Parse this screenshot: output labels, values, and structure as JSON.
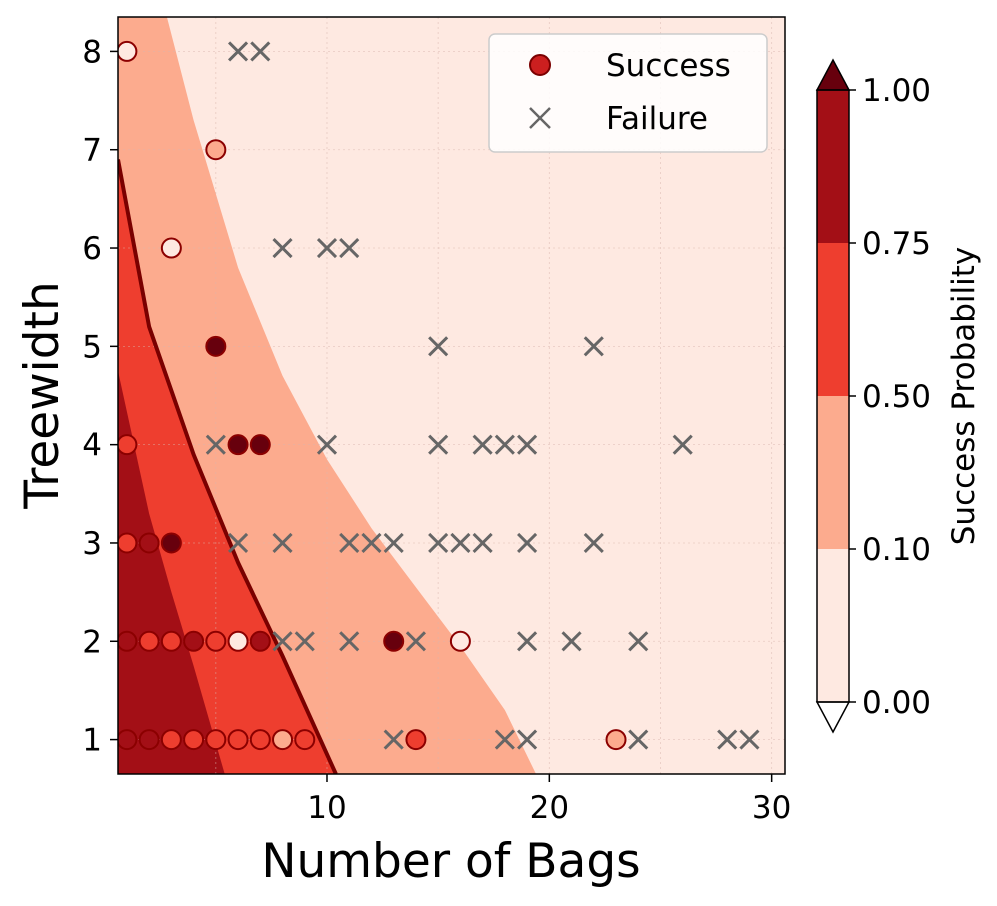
{
  "chart_data": {
    "type": "scatter",
    "xlabel": "Number of Bags",
    "ylabel": "Treewidth",
    "xlim": [
      0.6,
      30.6
    ],
    "ylim": [
      0.65,
      8.35
    ],
    "x_ticks": [
      10,
      20,
      30
    ],
    "x_tick_labels": [
      "10",
      "20",
      "30"
    ],
    "y_ticks": [
      1,
      2,
      3,
      4,
      5,
      6,
      7,
      8
    ],
    "y_tick_labels": [
      "1",
      "2",
      "3",
      "4",
      "5",
      "6",
      "7",
      "8"
    ],
    "grid": true,
    "legend": {
      "position": "top-right",
      "entries": [
        {
          "label": "Success",
          "marker": "circle",
          "color": "#cc1f1f"
        },
        {
          "label": "Failure",
          "marker": "x",
          "color": "#666666"
        }
      ]
    },
    "colorbar": {
      "label": "Success Probability",
      "levels": [
        0.0,
        0.1,
        0.5,
        0.75,
        1.0
      ],
      "tick_labels": [
        "0.00",
        "0.10",
        "0.50",
        "0.75",
        "1.00"
      ],
      "colors": [
        "#fee9e1",
        "#fcab8e",
        "#ee3e2f",
        "#a30f16"
      ],
      "extend_min_color": "#ffffff",
      "extend_max_color": "#67000d"
    },
    "contour_regions": {
      "colors": {
        "p_lt_010": "#fee9e1",
        "p_010_050": "#fcab8e",
        "p_050_075": "#ee3e2f",
        "p_gt_075": "#a30f16"
      },
      "boundary_010": [
        [
          2.8,
          8.35
        ],
        [
          4,
          7.3
        ],
        [
          6,
          5.8
        ],
        [
          8,
          4.7
        ],
        [
          10,
          3.85
        ],
        [
          12,
          3.15
        ],
        [
          14,
          2.55
        ],
        [
          16,
          1.95
        ],
        [
          18,
          1.3
        ],
        [
          19.4,
          0.65
        ]
      ],
      "boundary_050": [
        [
          0.6,
          6.9
        ],
        [
          2,
          5.2
        ],
        [
          4,
          3.9
        ],
        [
          6,
          2.8
        ],
        [
          8,
          1.85
        ],
        [
          10.4,
          0.65
        ]
      ],
      "boundary_075": [
        [
          0.6,
          4.75
        ],
        [
          2,
          3.3
        ],
        [
          3,
          2.5
        ],
        [
          4,
          1.75
        ],
        [
          5.4,
          0.65
        ]
      ],
      "line_color": "#7a0000"
    },
    "success": [
      {
        "x": 1,
        "y": 8,
        "p": 0.05
      },
      {
        "x": 5,
        "y": 7,
        "p": 0.3
      },
      {
        "x": 3,
        "y": 6,
        "p": 0.05
      },
      {
        "x": 5,
        "y": 5,
        "p": 0.95
      },
      {
        "x": 1,
        "y": 4,
        "p": 0.6
      },
      {
        "x": 6,
        "y": 4,
        "p": 0.9
      },
      {
        "x": 7,
        "y": 4,
        "p": 0.9
      },
      {
        "x": 1,
        "y": 3,
        "p": 0.6
      },
      {
        "x": 2,
        "y": 3,
        "p": 0.85
      },
      {
        "x": 3,
        "y": 3,
        "p": 0.9
      },
      {
        "x": 1,
        "y": 2,
        "p": 0.8
      },
      {
        "x": 2,
        "y": 2,
        "p": 0.6
      },
      {
        "x": 3,
        "y": 2,
        "p": 0.6
      },
      {
        "x": 4,
        "y": 2,
        "p": 0.8
      },
      {
        "x": 5,
        "y": 2,
        "p": 0.6
      },
      {
        "x": 6,
        "y": 2,
        "p": 0.05
      },
      {
        "x": 7,
        "y": 2,
        "p": 0.85
      },
      {
        "x": 13,
        "y": 2,
        "p": 0.95
      },
      {
        "x": 16,
        "y": 2,
        "p": 0.05
      },
      {
        "x": 1,
        "y": 1,
        "p": 0.85
      },
      {
        "x": 2,
        "y": 1,
        "p": 0.85
      },
      {
        "x": 3,
        "y": 1,
        "p": 0.6
      },
      {
        "x": 4,
        "y": 1,
        "p": 0.6
      },
      {
        "x": 5,
        "y": 1,
        "p": 0.6
      },
      {
        "x": 6,
        "y": 1,
        "p": 0.6
      },
      {
        "x": 7,
        "y": 1,
        "p": 0.6
      },
      {
        "x": 8,
        "y": 1,
        "p": 0.3
      },
      {
        "x": 9,
        "y": 1,
        "p": 0.6
      },
      {
        "x": 14,
        "y": 1,
        "p": 0.6
      },
      {
        "x": 23,
        "y": 1,
        "p": 0.3
      }
    ],
    "failure": [
      {
        "x": 6,
        "y": 8
      },
      {
        "x": 7,
        "y": 8
      },
      {
        "x": 8,
        "y": 6
      },
      {
        "x": 10,
        "y": 6
      },
      {
        "x": 11,
        "y": 6
      },
      {
        "x": 15,
        "y": 5
      },
      {
        "x": 22,
        "y": 5
      },
      {
        "x": 5,
        "y": 4
      },
      {
        "x": 10,
        "y": 4
      },
      {
        "x": 15,
        "y": 4
      },
      {
        "x": 17,
        "y": 4
      },
      {
        "x": 18,
        "y": 4
      },
      {
        "x": 19,
        "y": 4
      },
      {
        "x": 26,
        "y": 4
      },
      {
        "x": 6,
        "y": 3
      },
      {
        "x": 8,
        "y": 3
      },
      {
        "x": 11,
        "y": 3
      },
      {
        "x": 12,
        "y": 3
      },
      {
        "x": 13,
        "y": 3
      },
      {
        "x": 15,
        "y": 3
      },
      {
        "x": 16,
        "y": 3
      },
      {
        "x": 17,
        "y": 3
      },
      {
        "x": 19,
        "y": 3
      },
      {
        "x": 22,
        "y": 3
      },
      {
        "x": 8,
        "y": 2
      },
      {
        "x": 9,
        "y": 2
      },
      {
        "x": 11,
        "y": 2
      },
      {
        "x": 14,
        "y": 2
      },
      {
        "x": 19,
        "y": 2
      },
      {
        "x": 21,
        "y": 2
      },
      {
        "x": 24,
        "y": 2
      },
      {
        "x": 13,
        "y": 1
      },
      {
        "x": 18,
        "y": 1
      },
      {
        "x": 19,
        "y": 1
      },
      {
        "x": 24,
        "y": 1
      },
      {
        "x": 28,
        "y": 1
      },
      {
        "x": 29,
        "y": 1
      }
    ]
  }
}
